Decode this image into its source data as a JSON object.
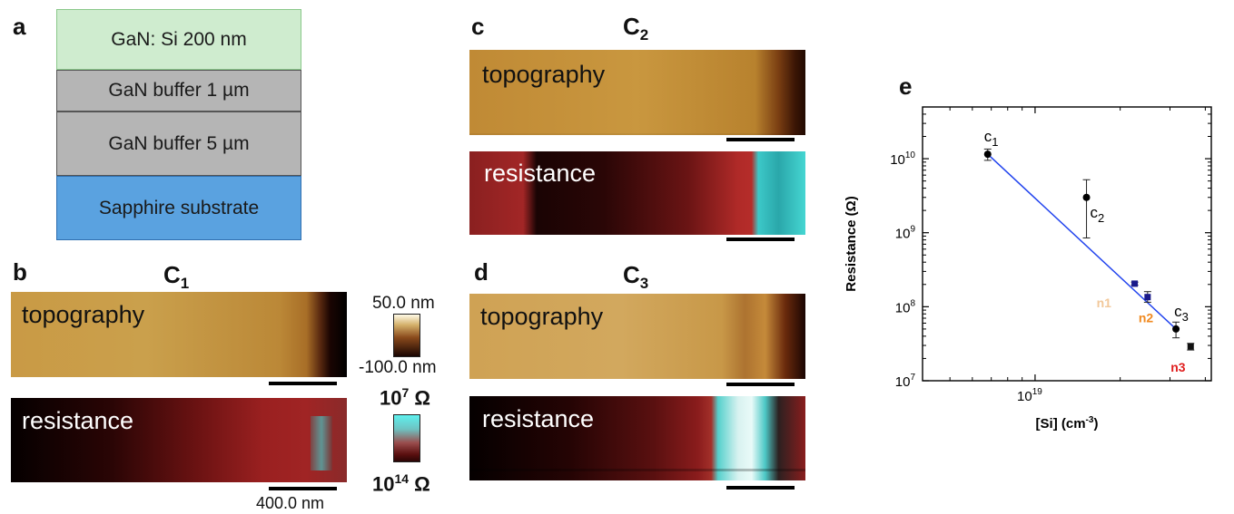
{
  "panel_a": {
    "label": "a",
    "layers": [
      {
        "text": "GaN: Si 200 nm",
        "color": "#cfeccf"
      },
      {
        "text": "GaN buffer 1 µm",
        "color": "#b5b5b5"
      },
      {
        "text": "GaN buffer 5 µm",
        "color": "#b5b5b5"
      },
      {
        "text": "Sapphire substrate",
        "color": "#5aa2e0"
      }
    ]
  },
  "panel_b": {
    "label": "b",
    "title_main": "C",
    "title_sub": "1",
    "topo_label": "topography",
    "res_label": "resistance",
    "scalebar_label": "400.0 nm"
  },
  "panel_c": {
    "label": "c",
    "title_main": "C",
    "title_sub": "2",
    "topo_label": "topography",
    "res_label": "resistance"
  },
  "panel_d": {
    "label": "d",
    "title_main": "C",
    "title_sub": "3",
    "topo_label": "topography",
    "res_label": "resistance"
  },
  "colorbars": {
    "topo_max": "50.0 nm",
    "topo_min": "-100.0 nm",
    "res_top_base": "10",
    "res_top_exp": "7",
    "res_top_unit": " Ω",
    "res_bottom_base": "10",
    "res_bottom_exp": "14",
    "res_bottom_unit": " Ω"
  },
  "panel_e": {
    "label": "e"
  },
  "chart_data": {
    "type": "scatter",
    "title": "",
    "xlabel": "[Si] (cm-3)",
    "ylabel": "Resistance (Ω)",
    "x_scale": "log",
    "y_scale": "log",
    "xlim": [
      4e+18,
      4.2e+19
    ],
    "ylim": [
      10000000.0,
      50000000000.0
    ],
    "x_tick": {
      "value": 1e+19,
      "base": "10",
      "exp": "19"
    },
    "y_ticks": [
      {
        "value": 10000000.0,
        "base": "10",
        "exp": "7"
      },
      {
        "value": 100000000.0,
        "base": "10",
        "exp": "8"
      },
      {
        "value": 1000000000.0,
        "base": "10",
        "exp": "9"
      },
      {
        "value": 10000000000.0,
        "base": "10",
        "exp": "10"
      }
    ],
    "points": [
      {
        "label_main": "c",
        "label_sub": "1",
        "x": 6.8e+18,
        "y": 11500000000.0,
        "err_low": 9500000000.0,
        "err_high": 13500000000.0,
        "marker": "circle",
        "color": "#000000",
        "label_color": "#000000"
      },
      {
        "label_main": "c",
        "label_sub": "2",
        "x": 1.52e+19,
        "y": 3000000000.0,
        "err_low": 850000000.0,
        "err_high": 5200000000.0,
        "marker": "circle",
        "color": "#000000",
        "label_color": "#000000"
      },
      {
        "label_main": "n1",
        "label_sub": "",
        "x": 2.25e+19,
        "y": 205000000.0,
        "err_low": 195000000.0,
        "err_high": 215000000.0,
        "marker": "square",
        "color": "#1a1a8a",
        "label_color": "#f2c89a"
      },
      {
        "label_main": "n2",
        "label_sub": "",
        "x": 2.5e+19,
        "y": 135000000.0,
        "err_low": 115000000.0,
        "err_high": 160000000.0,
        "marker": "square",
        "color": "#1a1a8a",
        "label_color": "#f08a20"
      },
      {
        "label_main": "c",
        "label_sub": "3",
        "x": 3.15e+19,
        "y": 50000000.0,
        "err_low": 38000000.0,
        "err_high": 62000000.0,
        "marker": "circle",
        "color": "#000000",
        "label_color": "#000000"
      },
      {
        "label_main": "n3",
        "label_sub": "",
        "x": 3.55e+19,
        "y": 29000000.0,
        "err_low": 26000000.0,
        "err_high": 32000000.0,
        "marker": "square",
        "color": "#111111",
        "label_color": "#e02020"
      }
    ],
    "fit_line": {
      "x": [
        6.8e+18,
        3.15e+19
      ],
      "y": [
        11500000000.0,
        50000000.0
      ],
      "color": "#2244ee"
    },
    "grid": false,
    "legend": "none"
  }
}
